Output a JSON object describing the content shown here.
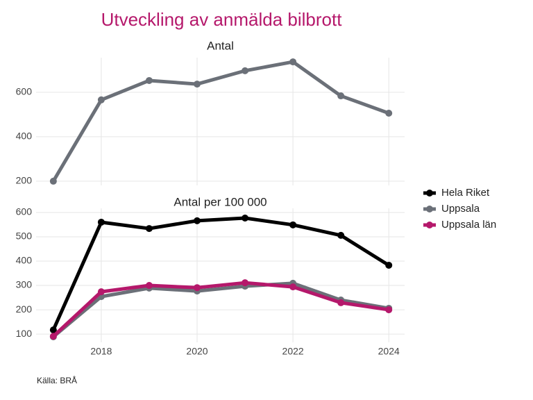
{
  "title": "Utveckling av anmälda bilbrott",
  "caption": "Källa: BRÅ",
  "chart_data": [
    {
      "type": "line",
      "title": "Antal",
      "x": [
        2017,
        2018,
        2019,
        2020,
        2021,
        2022,
        2023,
        2024
      ],
      "series": [
        {
          "name": "Uppsala",
          "color": "#6b7078",
          "values": [
            200,
            566,
            653,
            637,
            697,
            737,
            584,
            506
          ]
        }
      ],
      "xlim": [
        2016.64,
        2024.33
      ],
      "xticks": [
        2018,
        2020,
        2022,
        2024
      ],
      "xtick_labels": false,
      "ylim": [
        181,
        756
      ],
      "yticks": [
        200,
        400,
        600
      ],
      "grid": true
    },
    {
      "type": "line",
      "title": "Antal per 100 000",
      "x": [
        2017,
        2018,
        2019,
        2020,
        2021,
        2022,
        2023,
        2024
      ],
      "series": [
        {
          "name": "Hela Riket",
          "color": "#000000",
          "values": [
            117,
            560,
            534,
            566,
            577,
            549,
            506,
            383
          ]
        },
        {
          "name": "Uppsala",
          "color": "#6b7078",
          "values": [
            89,
            254,
            289,
            277,
            297,
            309,
            240,
            206
          ]
        },
        {
          "name": "Uppsala län",
          "color": "#b5186b",
          "values": [
            91,
            274,
            300,
            291,
            311,
            294,
            229,
            200
          ]
        }
      ],
      "xlim": [
        2016.64,
        2024.33
      ],
      "xticks": [
        2018,
        2020,
        2022,
        2024
      ],
      "xtick_labels": true,
      "ylim": [
        66,
        617
      ],
      "yticks": [
        100,
        200,
        300,
        400,
        500,
        600
      ],
      "grid": true,
      "legend": "right"
    }
  ]
}
